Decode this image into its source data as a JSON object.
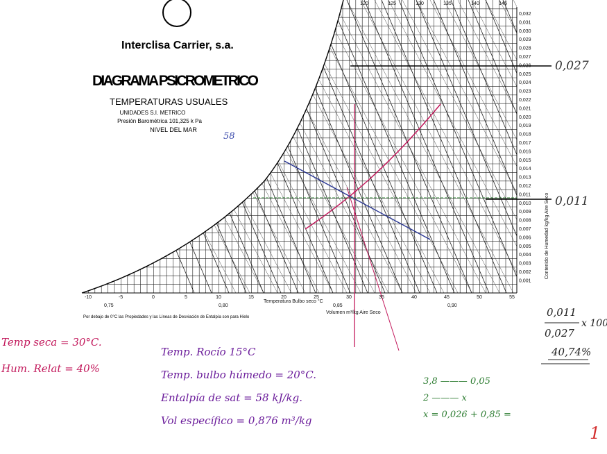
{
  "header": {
    "brand": "Interclisa Carrier, s.a.",
    "title": "DIAGRAMA PSICROMETRICO",
    "subtitle": "TEMPERATURAS USUALES",
    "lines": [
      "UNIDADES S.I. METRICO",
      "Presión Barométrica 101,325 k Pa",
      "NIVEL DEL MAR"
    ]
  },
  "chart": {
    "dry_bulb_ticks": [
      "-10",
      "-5",
      "0",
      "5",
      "10",
      "15",
      "20",
      "25",
      "30",
      "35",
      "40",
      "45",
      "50",
      "55"
    ],
    "humidity_ticks": [
      "0,032",
      "0,031",
      "0,030",
      "0,029",
      "0,028",
      "0,027",
      "0,026",
      "0,025",
      "0,024",
      "0,023",
      "0,022",
      "0,021",
      "0,020",
      "0,019",
      "0,018",
      "0,017",
      "0,016",
      "0,015",
      "0,014",
      "0,013",
      "0,012",
      "0,011",
      "0,010",
      "0,009",
      "0,008",
      "0,007",
      "0,006",
      "0,005",
      "0,004",
      "0,003",
      "0,002",
      "0,001"
    ],
    "enthalpy_ticks": [
      "120",
      "125",
      "130",
      "135",
      "140",
      "145"
    ],
    "volume_ticks": [
      "0,75",
      "0,80",
      "0,85",
      "0,90"
    ],
    "x_axis_label": "Temperatura Bulbo seco °C",
    "volume_label": "Volumen m³/kg Aire Seco",
    "right_label": "Contenido de Humedad kg/kg Aire Seco",
    "footnote": "Por debajo de 0°C las Propiedades y las Líneas de Desviación de Entalpía son para Hielo"
  },
  "notes": {
    "n58": "58",
    "w_high": "0,027",
    "w_low": "0,011",
    "fraction_num": "0,011",
    "fraction_den": "0,027",
    "fraction_mult": "x 100",
    "result": "40,74%",
    "left": [
      "Temp seca = 30°C.",
      "Hum. Relat = 40%"
    ],
    "middle": [
      "Temp. Rocío 15°C",
      "Temp. bulbo húmedo = 20°C.",
      "Entalpía de sat = 58 kJ/kg.",
      "Vol específico = 0,876 m³/kg"
    ],
    "right": [
      "3,8 ——— 0,05",
      "2 ——— x",
      "x = 0,026 + 0,85 ="
    ],
    "corner": "1"
  }
}
